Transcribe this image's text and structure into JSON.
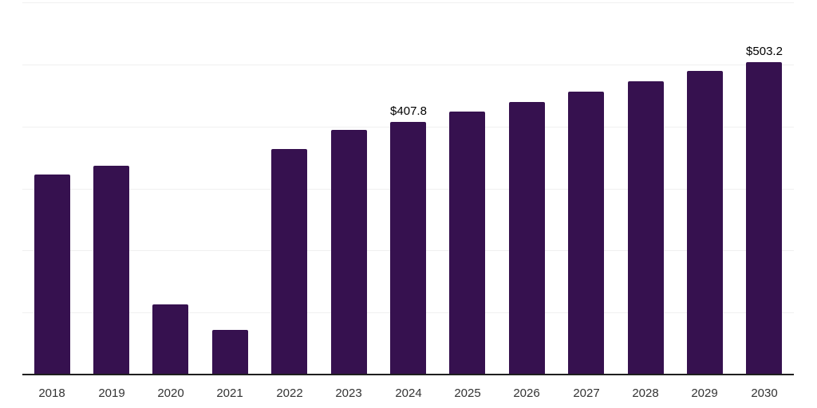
{
  "chart": {
    "background": "#ffffff",
    "bar_color": "#36114F",
    "gridline_color": "#f0f0f0",
    "axis_line_color": "#1f1f1f",
    "tick_label_color": "#333333",
    "data_label_color": "#000000"
  },
  "chart_data": {
    "type": "bar",
    "title": "",
    "xlabel": "",
    "ylabel": "",
    "categories": [
      "2018",
      "2019",
      "2020",
      "2021",
      "2022",
      "2023",
      "2024",
      "2025",
      "2026",
      "2027",
      "2028",
      "2029",
      "2030"
    ],
    "values": [
      323,
      336,
      113,
      72,
      363,
      394,
      407.8,
      424,
      440,
      456,
      473,
      489,
      503.2
    ],
    "data_labels": {
      "2024": "$407.8",
      "2030": "$503.2"
    },
    "ylim": [
      0,
      600
    ],
    "gridline_values": [
      0,
      100,
      200,
      300,
      400,
      500,
      600
    ],
    "grid": "horizontal-only",
    "legend": "none"
  }
}
